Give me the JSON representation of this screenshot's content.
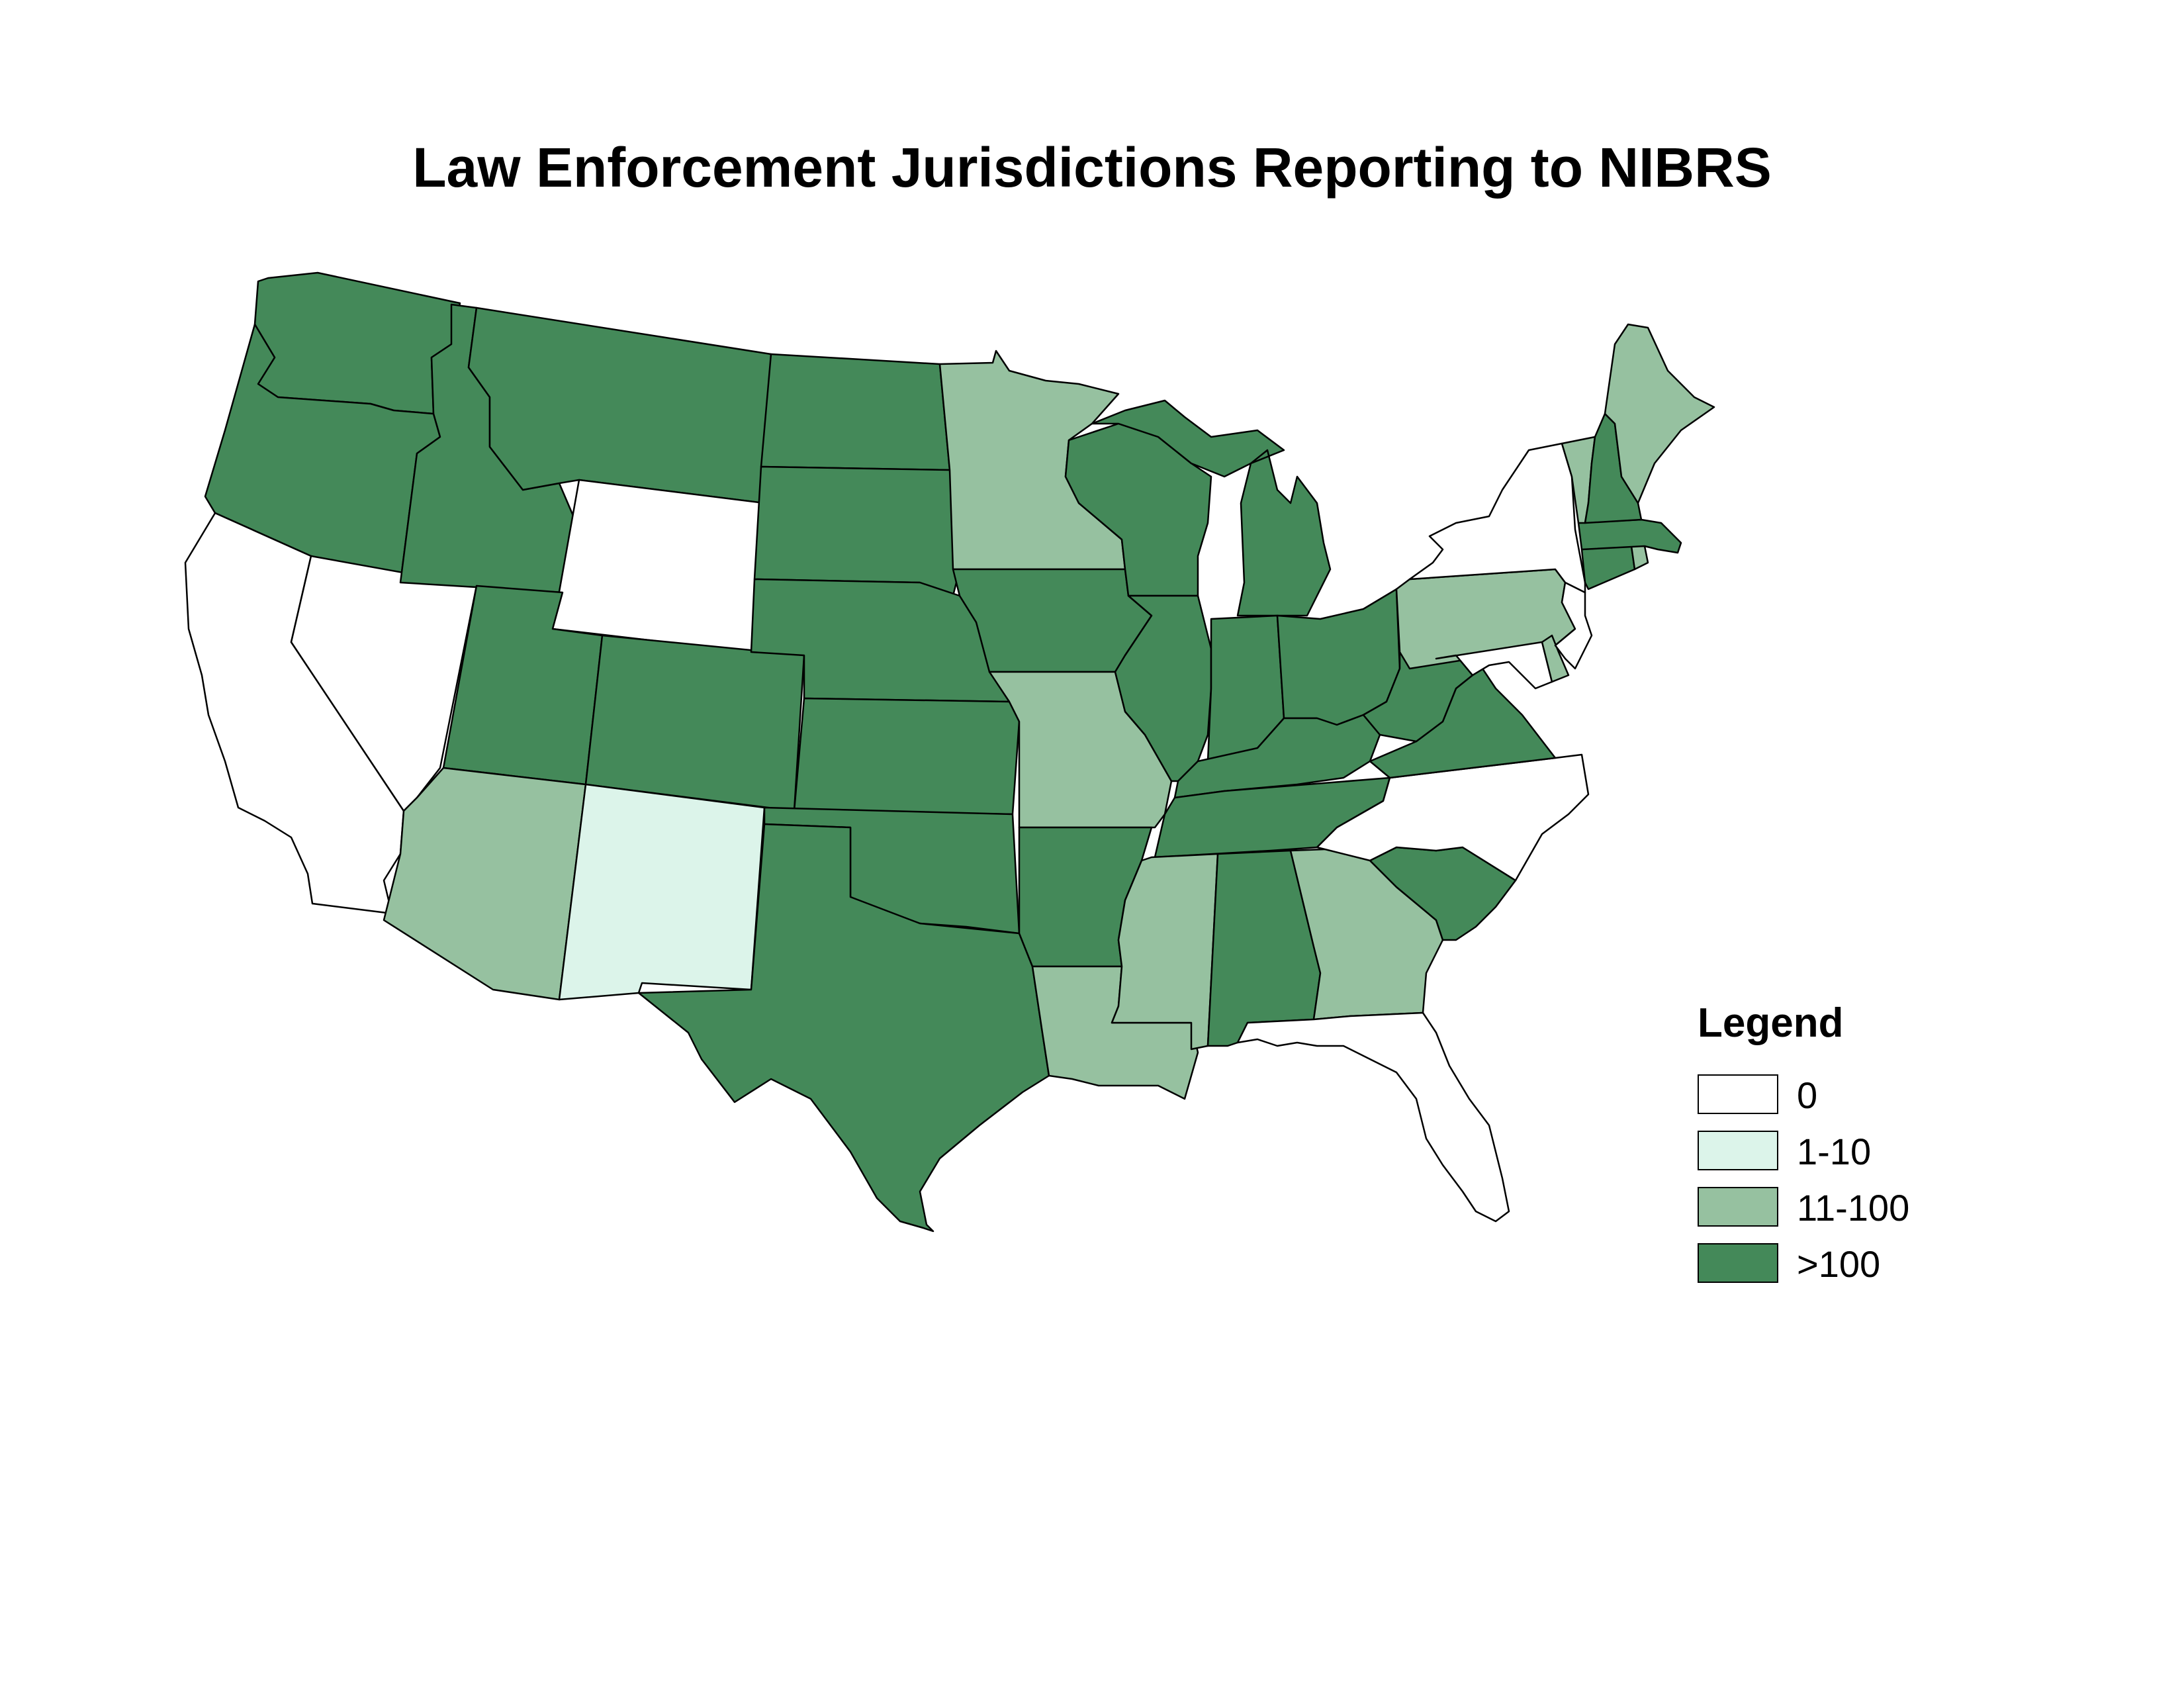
{
  "title": "Law Enforcement Jurisdictions Reporting to NIBRS",
  "colors": {
    "none": "#ffffff",
    "low": "#dcf4ea",
    "mid": "#96c1a0",
    "high": "#448959",
    "stroke": "#000000"
  },
  "legend": {
    "title": "Legend",
    "items": [
      {
        "label": "0",
        "category": "none"
      },
      {
        "label": "1-10",
        "category": "low"
      },
      {
        "label": "11-100",
        "category": "mid"
      },
      {
        "label": ">100",
        "category": "high"
      }
    ]
  },
  "states": {
    "washington": "high",
    "oregon": "high",
    "california": "none",
    "nevada": "none",
    "idaho": "high",
    "montana": "high",
    "wyoming": "none",
    "utah": "high",
    "arizona": "mid",
    "colorado": "high",
    "new-mexico": "low",
    "north-dakota": "high",
    "south-dakota": "high",
    "nebraska": "high",
    "kansas": "high",
    "oklahoma": "high",
    "texas": "high",
    "minnesota": "mid",
    "iowa": "high",
    "missouri": "mid",
    "arkansas": "high",
    "louisiana": "mid",
    "wisconsin": "high",
    "illinois": "high",
    "michigan": "high",
    "indiana": "high",
    "ohio": "high",
    "kentucky": "high",
    "tennessee": "high",
    "mississippi": "mid",
    "alabama": "high",
    "georgia": "mid",
    "florida": "none",
    "south-carolina": "high",
    "north-carolina": "none",
    "virginia": "high",
    "west-virginia": "high",
    "pennsylvania": "mid",
    "new-york": "none",
    "new-jersey": "none",
    "maryland": "none",
    "delaware": "mid",
    "connecticut": "high",
    "rhode-island": "mid",
    "massachusetts": "high",
    "vermont": "mid",
    "new-hampshire": "high",
    "maine": "mid"
  }
}
